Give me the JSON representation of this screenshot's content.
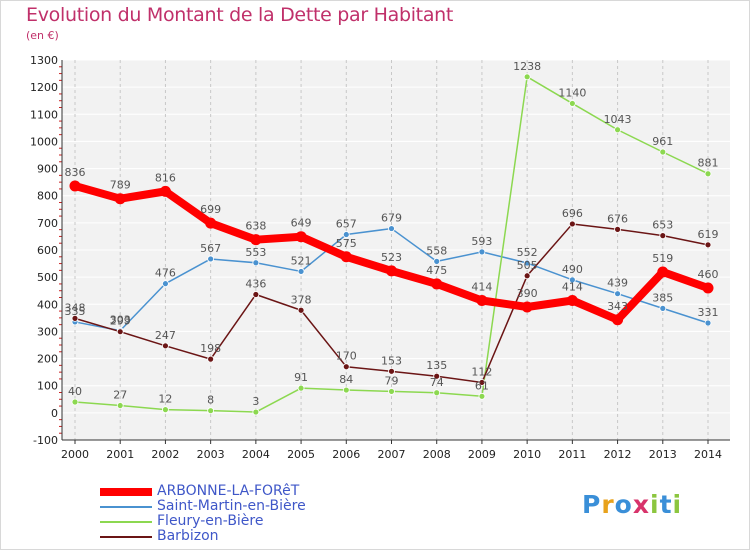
{
  "header": {
    "title": "Evolution du Montant de la Dette par Habitant",
    "unit": "(en €)"
  },
  "logo": {
    "text": "Proxiti",
    "colors": [
      "#3a8fd8",
      "#e8a21c",
      "#3a8fd8",
      "#d8336b",
      "#8cc63f",
      "#3a8fd8",
      "#8cc63f"
    ]
  },
  "chart_data": {
    "type": "line",
    "x": [
      2000,
      2001,
      2002,
      2003,
      2004,
      2005,
      2006,
      2007,
      2008,
      2009,
      2010,
      2011,
      2012,
      2013,
      2014
    ],
    "ylim": [
      -100,
      1300
    ],
    "yticks": [
      -100,
      0,
      100,
      200,
      300,
      400,
      500,
      600,
      700,
      800,
      900,
      1000,
      1100,
      1200,
      1300
    ],
    "grid": true,
    "legend_position": "bottom-left",
    "series": [
      {
        "name": "ARBONNE-LA-FORêT",
        "color": "#ff0000",
        "values": [
          836,
          789,
          816,
          699,
          638,
          649,
          575,
          523,
          475,
          414,
          390,
          414,
          343,
          519,
          460
        ]
      },
      {
        "name": "Saint-Martin-en-Bière",
        "color": "#4a92d0",
        "values": [
          335,
          303,
          476,
          567,
          553,
          521,
          657,
          679,
          558,
          593,
          552,
          490,
          439,
          385,
          331
        ]
      },
      {
        "name": "Fleury-en-Bière",
        "color": "#8cd850",
        "values": [
          40,
          27,
          12,
          8,
          3,
          91,
          84,
          79,
          74,
          61,
          1238,
          1140,
          1043,
          961,
          881
        ]
      },
      {
        "name": "Barbizon",
        "color": "#6b1515",
        "values": [
          348,
          299,
          247,
          198,
          436,
          378,
          170,
          153,
          135,
          112,
          505,
          696,
          676,
          653,
          619
        ]
      }
    ]
  }
}
